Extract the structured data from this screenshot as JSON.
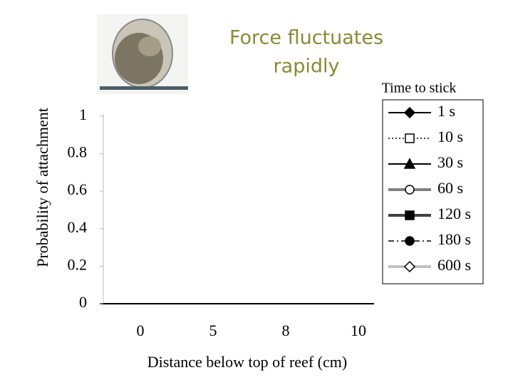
{
  "chart_data": {
    "type": "line",
    "title": "Force fluctuates rapidly",
    "x_label": "Distance below top of reef (cm)",
    "y_label": "Probability of attachment",
    "categories": [
      "0",
      "5",
      "8",
      "10"
    ],
    "ylim": [
      0,
      1
    ],
    "yticks": [
      0,
      0.2,
      0.4,
      0.6,
      0.8,
      1
    ],
    "legend_title": "Time to stick",
    "legend": "right",
    "series": [
      {
        "name": "1 s",
        "color": "#000000",
        "dash": "solid",
        "width": 2,
        "marker": "diamond",
        "marker_fill": "#000000",
        "values": [
          null,
          null,
          null,
          null
        ]
      },
      {
        "name": "10 s",
        "color": "#000000",
        "dash": "dot",
        "width": 1.5,
        "marker": "square",
        "marker_fill": "#ffffff",
        "values": [
          null,
          null,
          null,
          null
        ]
      },
      {
        "name": "30 s",
        "color": "#000000",
        "dash": "solid",
        "width": 2,
        "marker": "triangle",
        "marker_fill": "#000000",
        "values": [
          null,
          null,
          null,
          null
        ]
      },
      {
        "name": "60 s",
        "color": "#808080",
        "dash": "solid",
        "width": 4,
        "marker": "circle",
        "marker_fill": "#ffffff",
        "values": [
          null,
          null,
          null,
          null
        ]
      },
      {
        "name": "120 s",
        "color": "#404040",
        "dash": "solid",
        "width": 4,
        "marker": "square",
        "marker_fill": "#000000",
        "values": [
          null,
          null,
          null,
          null
        ]
      },
      {
        "name": "180 s",
        "color": "#000000",
        "dash": "dashdot",
        "width": 1.5,
        "marker": "circle",
        "marker_fill": "#000000",
        "values": [
          null,
          null,
          null,
          null
        ]
      },
      {
        "name": "600 s",
        "color": "#c0c0c0",
        "dash": "solid",
        "width": 4,
        "marker": "diamond",
        "marker_fill": "#ffffff",
        "values": [
          null,
          null,
          null,
          null
        ]
      }
    ]
  }
}
